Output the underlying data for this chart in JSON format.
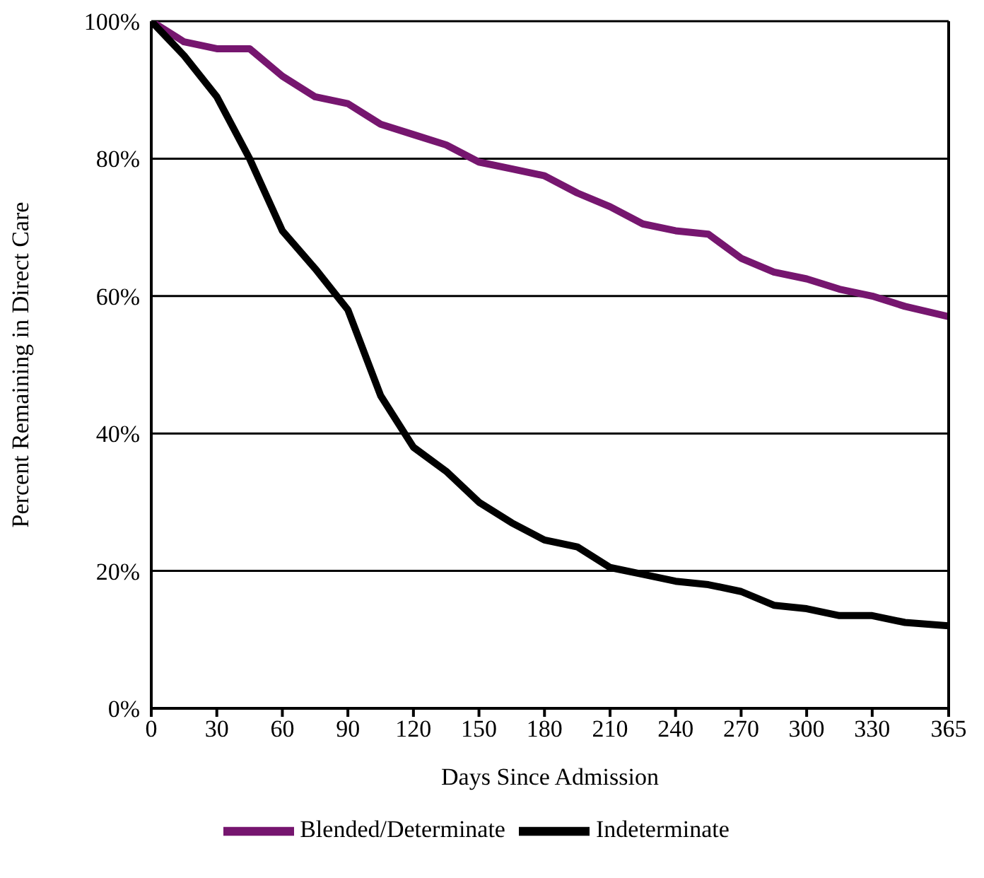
{
  "chart_data": {
    "type": "line",
    "xlabel": "Days Since Admission",
    "ylabel": "Percent Remaining in Direct Care",
    "x": [
      0,
      15,
      30,
      45,
      60,
      75,
      90,
      105,
      120,
      135,
      150,
      165,
      180,
      195,
      210,
      225,
      240,
      255,
      270,
      285,
      300,
      315,
      330,
      345,
      365
    ],
    "series": [
      {
        "name": "Blended/Determinate",
        "color": "#76166f",
        "values": [
          100,
          97,
          96,
          96,
          92,
          89,
          88,
          85,
          83.5,
          82,
          79.5,
          78.5,
          77.5,
          75,
          73,
          70.5,
          69.5,
          69,
          65.5,
          63.5,
          62.5,
          61,
          60,
          58.5,
          57
        ]
      },
      {
        "name": "Indeterminate",
        "color": "#000000",
        "values": [
          100,
          95,
          89,
          80,
          69.5,
          64,
          58,
          45.5,
          38,
          34.5,
          30,
          27,
          24.5,
          23.5,
          20.5,
          19.5,
          18.5,
          18,
          17,
          15,
          14.5,
          13.5,
          13.5,
          12.5,
          12
        ]
      }
    ],
    "xlim": [
      0,
      365
    ],
    "xticks": [
      0,
      30,
      60,
      90,
      120,
      150,
      180,
      210,
      240,
      270,
      300,
      330,
      365
    ],
    "ylim": [
      0,
      100
    ],
    "yticks": [
      {
        "value": 0,
        "label": "0%"
      },
      {
        "value": 20,
        "label": "20%"
      },
      {
        "value": 40,
        "label": "40%"
      },
      {
        "value": 60,
        "label": "60%"
      },
      {
        "value": 80,
        "label": "80%"
      },
      {
        "value": 100,
        "label": "100%"
      }
    ],
    "grid": "y",
    "legend": "bottom",
    "marker": "none",
    "line_style": "solid"
  }
}
